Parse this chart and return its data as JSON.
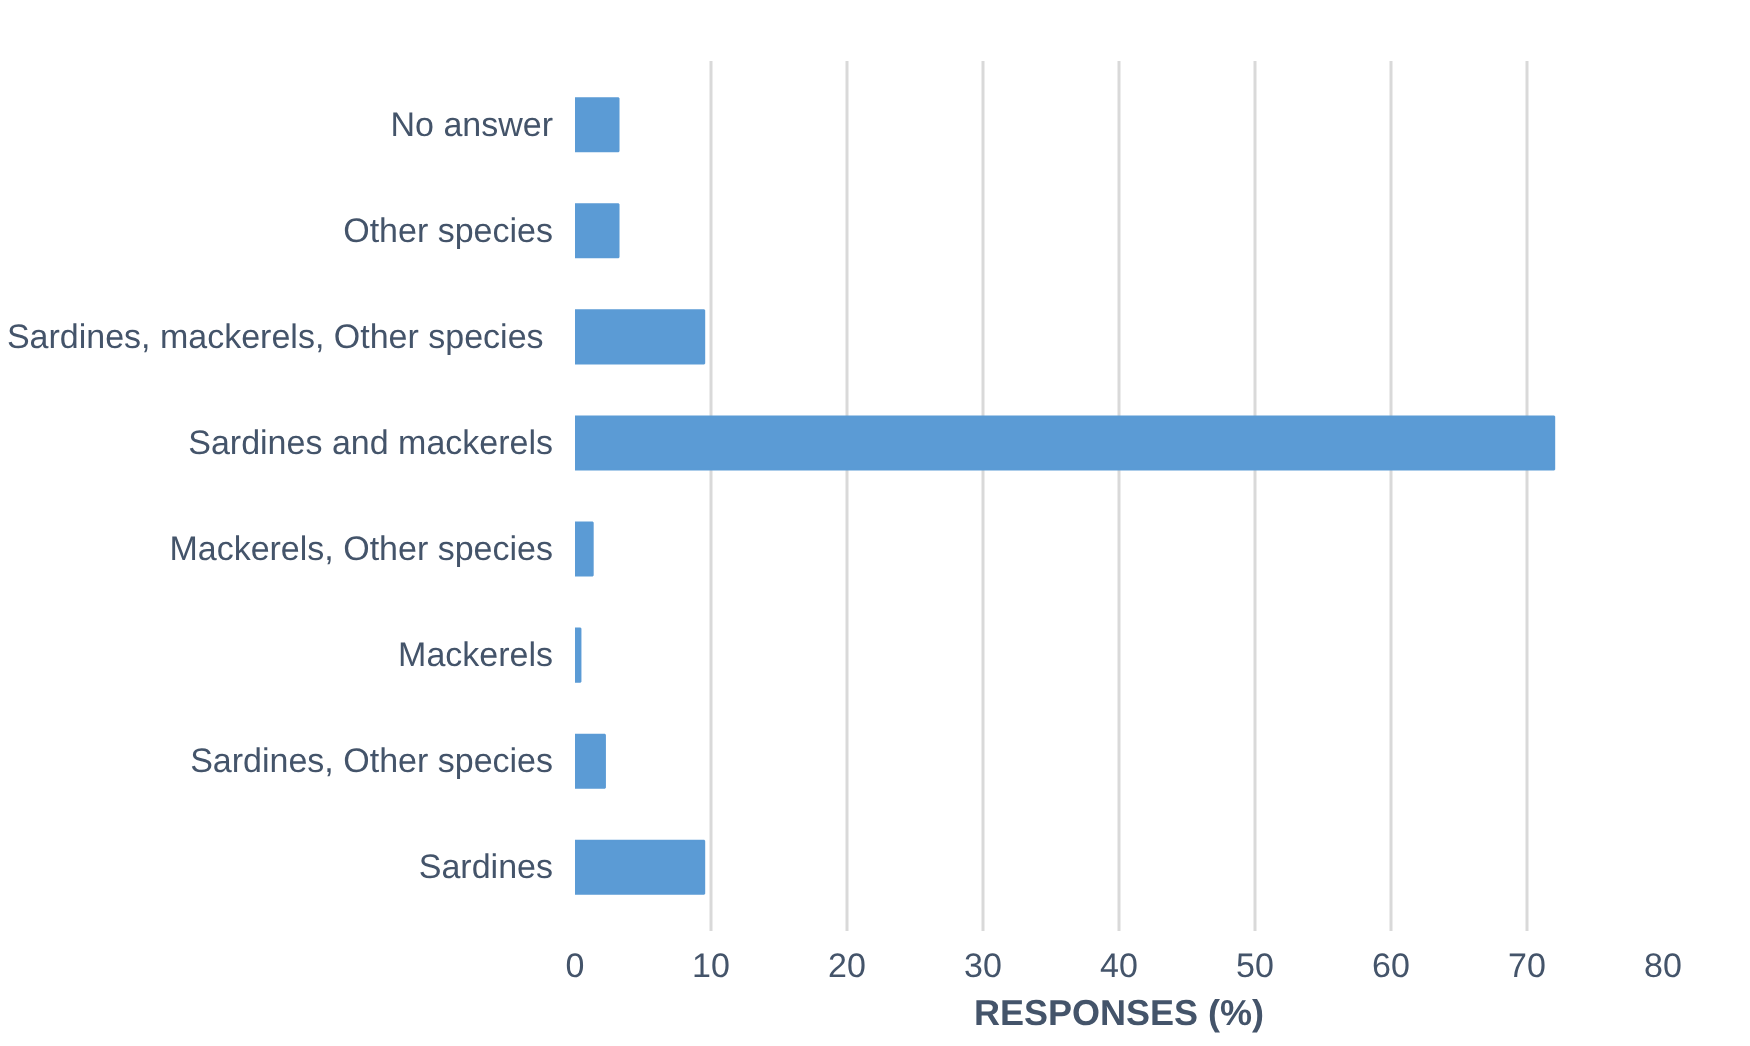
{
  "chart_data": {
    "type": "bar",
    "orientation": "horizontal",
    "xlabel": "RESPONSES (%)",
    "categories": [
      "No answer",
      "Other species",
      "Sardines,  mackerels, Other species",
      "Sardines and mackerels",
      "Mackerels, Other species",
      "Mackerels",
      "Sardines, Other species",
      "Sardines"
    ],
    "values": [
      3.2,
      3.2,
      9.5,
      72,
      1.3,
      0.4,
      2.2,
      9.5
    ],
    "color": "#5b9bd5",
    "xlim": [
      0,
      80
    ],
    "xticks": [
      0,
      10,
      20,
      30,
      40,
      50,
      60,
      70,
      80
    ],
    "grid": "x"
  }
}
